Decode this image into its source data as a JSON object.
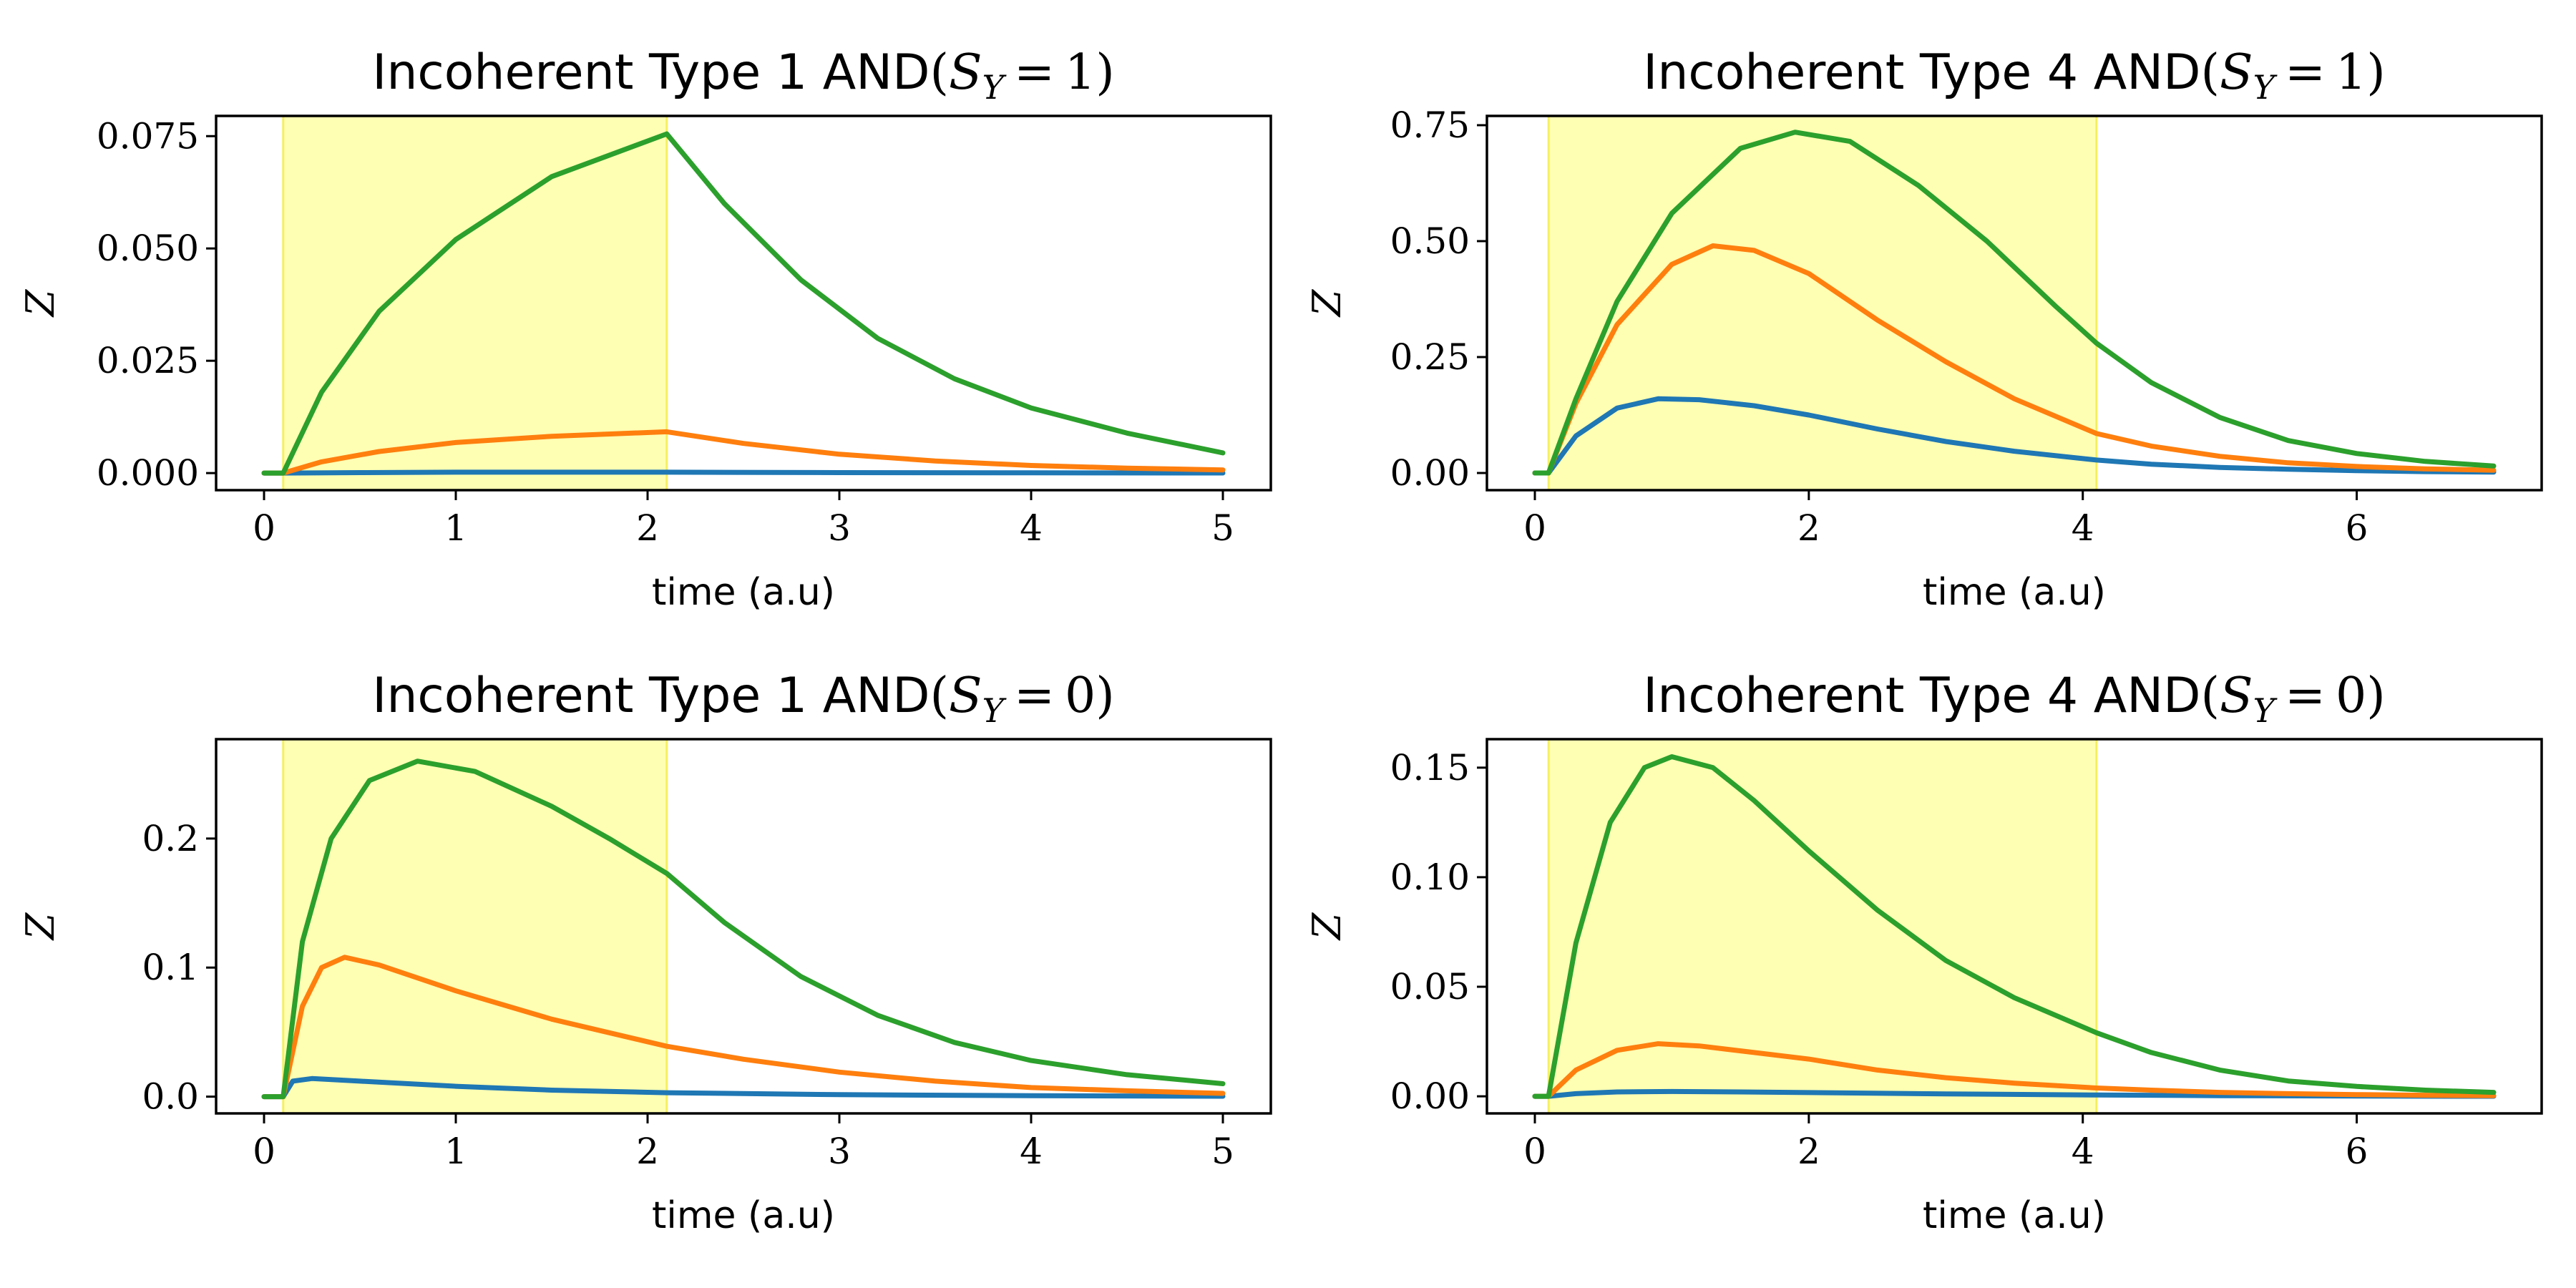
{
  "colors": {
    "shade": "#ffff99",
    "series": [
      "#1f77b4",
      "#ff7f0e",
      "#2ca02c"
    ]
  },
  "chart_data": [
    {
      "type": "line",
      "title": "Incoherent Type 1 AND",
      "title_condition": {
        "var": "S",
        "sub": "Y",
        "op": "=",
        "value": "1"
      },
      "xlabel": "time (a.u)",
      "ylabel": "Z",
      "xlim": [
        -0.25,
        5.25
      ],
      "ylim": [
        -0.0038,
        0.0795
      ],
      "xticks": [
        0,
        1,
        2,
        3,
        4,
        5
      ],
      "xtick_labels": [
        "0",
        "1",
        "2",
        "3",
        "4",
        "5"
      ],
      "yticks": [
        0.0,
        0.025,
        0.05,
        0.075
      ],
      "ytick_labels": [
        "0.000",
        "0.025",
        "0.050",
        "0.075"
      ],
      "shaded_span": [
        0.1,
        2.1
      ],
      "grid": false,
      "series": [
        {
          "color": "#1f77b4",
          "x": [
            0,
            0.1,
            0.5,
            1.0,
            1.5,
            2.1,
            3.0,
            4.0,
            5.0
          ],
          "y": [
            0,
            0,
            0.0001,
            0.0002,
            0.0002,
            0.0002,
            0.0001,
            5e-05,
            2e-05
          ]
        },
        {
          "color": "#ff7f0e",
          "x": [
            0,
            0.1,
            0.3,
            0.6,
            1.0,
            1.5,
            2.1,
            2.5,
            3.0,
            3.5,
            4.0,
            4.5,
            5.0
          ],
          "y": [
            0,
            0,
            0.0025,
            0.0048,
            0.0068,
            0.0082,
            0.0092,
            0.0066,
            0.0042,
            0.0027,
            0.0017,
            0.0011,
            0.0007
          ]
        },
        {
          "color": "#2ca02c",
          "x": [
            0,
            0.1,
            0.3,
            0.6,
            1.0,
            1.5,
            2.1,
            2.4,
            2.8,
            3.2,
            3.6,
            4.0,
            4.5,
            5.0
          ],
          "y": [
            0,
            0,
            0.018,
            0.036,
            0.052,
            0.066,
            0.0755,
            0.06,
            0.043,
            0.03,
            0.021,
            0.0145,
            0.0089,
            0.0045
          ]
        }
      ]
    },
    {
      "type": "line",
      "title": "Incoherent Type 4 AND",
      "title_condition": {
        "var": "S",
        "sub": "Y",
        "op": "=",
        "value": "1"
      },
      "xlabel": "time (a.u)",
      "ylabel": "Z",
      "xlim": [
        -0.35,
        7.35
      ],
      "ylim": [
        -0.037,
        0.77
      ],
      "xticks": [
        0,
        2,
        4,
        6
      ],
      "xtick_labels": [
        "0",
        "2",
        "4",
        "6"
      ],
      "yticks": [
        0.0,
        0.25,
        0.5,
        0.75
      ],
      "ytick_labels": [
        "0.00",
        "0.25",
        "0.50",
        "0.75"
      ],
      "shaded_span": [
        0.1,
        4.1
      ],
      "grid": false,
      "series": [
        {
          "color": "#1f77b4",
          "x": [
            0,
            0.1,
            0.3,
            0.6,
            0.9,
            1.2,
            1.6,
            2.0,
            2.5,
            3.0,
            3.5,
            4.1,
            4.5,
            5.0,
            5.5,
            6.0,
            6.5,
            7.0
          ],
          "y": [
            0,
            0,
            0.08,
            0.14,
            0.16,
            0.158,
            0.145,
            0.125,
            0.095,
            0.068,
            0.047,
            0.028,
            0.019,
            0.012,
            0.008,
            0.005,
            0.003,
            0.002
          ]
        },
        {
          "color": "#ff7f0e",
          "x": [
            0,
            0.1,
            0.3,
            0.6,
            1.0,
            1.3,
            1.6,
            2.0,
            2.5,
            3.0,
            3.5,
            4.1,
            4.5,
            5.0,
            5.5,
            6.0,
            6.5,
            7.0
          ],
          "y": [
            0,
            0,
            0.15,
            0.32,
            0.45,
            0.49,
            0.48,
            0.43,
            0.33,
            0.24,
            0.16,
            0.085,
            0.058,
            0.036,
            0.022,
            0.014,
            0.009,
            0.006
          ]
        },
        {
          "color": "#2ca02c",
          "x": [
            0,
            0.1,
            0.3,
            0.6,
            1.0,
            1.5,
            1.9,
            2.3,
            2.8,
            3.3,
            3.8,
            4.1,
            4.5,
            5.0,
            5.5,
            6.0,
            6.5,
            7.0
          ],
          "y": [
            0,
            0,
            0.16,
            0.37,
            0.56,
            0.7,
            0.735,
            0.715,
            0.62,
            0.5,
            0.36,
            0.28,
            0.195,
            0.12,
            0.07,
            0.042,
            0.025,
            0.015
          ]
        }
      ]
    },
    {
      "type": "line",
      "title": "Incoherent Type 1 AND",
      "title_condition": {
        "var": "S",
        "sub": "Y",
        "op": "=",
        "value": "0"
      },
      "xlabel": "time (a.u)",
      "ylabel": "Z",
      "xlim": [
        -0.25,
        5.25
      ],
      "ylim": [
        -0.013,
        0.277
      ],
      "xticks": [
        0,
        1,
        2,
        3,
        4,
        5
      ],
      "xtick_labels": [
        "0",
        "1",
        "2",
        "3",
        "4",
        "5"
      ],
      "yticks": [
        0.0,
        0.1,
        0.2
      ],
      "ytick_labels": [
        "0.0",
        "0.1",
        "0.2"
      ],
      "shaded_span": [
        0.1,
        2.1
      ],
      "grid": false,
      "series": [
        {
          "color": "#1f77b4",
          "x": [
            0,
            0.1,
            0.15,
            0.25,
            0.5,
            1.0,
            1.5,
            2.1,
            3.0,
            4.0,
            5.0
          ],
          "y": [
            0,
            0,
            0.012,
            0.014,
            0.012,
            0.008,
            0.005,
            0.003,
            0.0015,
            0.0007,
            0.0003
          ]
        },
        {
          "color": "#ff7f0e",
          "x": [
            0,
            0.1,
            0.2,
            0.3,
            0.42,
            0.6,
            1.0,
            1.5,
            2.1,
            2.5,
            3.0,
            3.5,
            4.0,
            4.5,
            5.0
          ],
          "y": [
            0,
            0,
            0.07,
            0.1,
            0.108,
            0.102,
            0.082,
            0.06,
            0.039,
            0.029,
            0.019,
            0.012,
            0.007,
            0.0045,
            0.0025
          ]
        },
        {
          "color": "#2ca02c",
          "x": [
            0,
            0.1,
            0.2,
            0.35,
            0.55,
            0.8,
            1.1,
            1.5,
            1.8,
            2.1,
            2.4,
            2.8,
            3.2,
            3.6,
            4.0,
            4.5,
            5.0
          ],
          "y": [
            0,
            0,
            0.12,
            0.2,
            0.245,
            0.26,
            0.252,
            0.225,
            0.2,
            0.173,
            0.135,
            0.093,
            0.063,
            0.042,
            0.028,
            0.017,
            0.01
          ]
        }
      ]
    },
    {
      "type": "line",
      "title": "Incoherent Type 4 AND",
      "title_condition": {
        "var": "S",
        "sub": "Y",
        "op": "=",
        "value": "0"
      },
      "xlabel": "time (a.u)",
      "ylabel": "Z",
      "xlim": [
        -0.35,
        7.35
      ],
      "ylim": [
        -0.0078,
        0.163
      ],
      "xticks": [
        0,
        2,
        4,
        6
      ],
      "xtick_labels": [
        "0",
        "2",
        "4",
        "6"
      ],
      "yticks": [
        0.0,
        0.05,
        0.1,
        0.15
      ],
      "ytick_labels": [
        "0.00",
        "0.05",
        "0.10",
        "0.15"
      ],
      "shaded_span": [
        0.1,
        4.1
      ],
      "grid": false,
      "series": [
        {
          "color": "#1f77b4",
          "x": [
            0,
            0.1,
            0.3,
            0.6,
            1.0,
            1.5,
            2.0,
            3.0,
            4.1,
            5.0,
            6.0,
            7.0
          ],
          "y": [
            0,
            0,
            0.0012,
            0.002,
            0.0022,
            0.002,
            0.0017,
            0.0011,
            0.0006,
            0.0003,
            0.0001,
            5e-05
          ]
        },
        {
          "color": "#ff7f0e",
          "x": [
            0,
            0.1,
            0.3,
            0.6,
            0.9,
            1.2,
            1.6,
            2.0,
            2.5,
            3.0,
            3.5,
            4.1,
            4.5,
            5.0,
            5.5,
            6.0,
            6.5,
            7.0
          ],
          "y": [
            0,
            0,
            0.012,
            0.021,
            0.024,
            0.023,
            0.02,
            0.017,
            0.012,
            0.0085,
            0.006,
            0.0038,
            0.0028,
            0.0018,
            0.0012,
            0.0008,
            0.0005,
            0.0003
          ]
        },
        {
          "color": "#2ca02c",
          "x": [
            0,
            0.1,
            0.3,
            0.55,
            0.8,
            1.0,
            1.3,
            1.6,
            2.0,
            2.5,
            3.0,
            3.5,
            4.1,
            4.5,
            5.0,
            5.5,
            6.0,
            6.5,
            7.0
          ],
          "y": [
            0,
            0,
            0.07,
            0.125,
            0.15,
            0.155,
            0.15,
            0.135,
            0.112,
            0.085,
            0.062,
            0.045,
            0.029,
            0.02,
            0.012,
            0.007,
            0.0045,
            0.0028,
            0.0018
          ]
        }
      ]
    }
  ]
}
